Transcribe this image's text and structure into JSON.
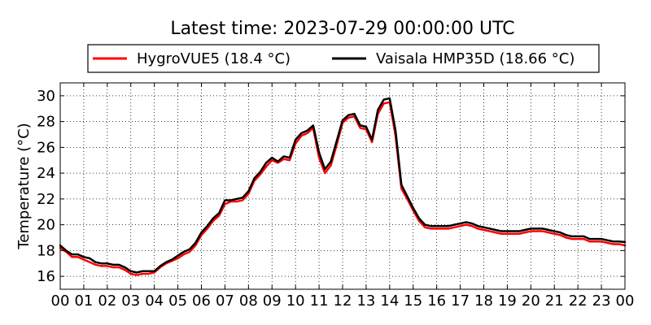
{
  "chart_data": {
    "type": "line",
    "title": "Latest time: 2023-07-29 00:00:00 UTC",
    "xlabel": "",
    "ylabel": "Temperature (°C)",
    "xlim": [
      "00",
      "00"
    ],
    "ylim": [
      15,
      31
    ],
    "x_ticks": [
      "00",
      "01",
      "02",
      "03",
      "04",
      "05",
      "06",
      "07",
      "08",
      "09",
      "10",
      "11",
      "12",
      "13",
      "14",
      "15",
      "16",
      "17",
      "18",
      "19",
      "20",
      "21",
      "22",
      "23",
      "00"
    ],
    "y_ticks": [
      16,
      18,
      20,
      22,
      24,
      26,
      28,
      30
    ],
    "grid": true,
    "legend_position": "top",
    "x_hours": [
      0.0,
      0.25,
      0.5,
      0.75,
      1.0,
      1.25,
      1.5,
      1.75,
      2.0,
      2.25,
      2.5,
      2.75,
      3.0,
      3.25,
      3.5,
      3.75,
      4.0,
      4.25,
      4.5,
      4.75,
      5.0,
      5.25,
      5.5,
      5.75,
      6.0,
      6.25,
      6.5,
      6.75,
      7.0,
      7.25,
      7.5,
      7.75,
      8.0,
      8.25,
      8.5,
      8.75,
      9.0,
      9.25,
      9.5,
      9.75,
      10.0,
      10.25,
      10.5,
      10.75,
      11.0,
      11.25,
      11.5,
      11.75,
      12.0,
      12.25,
      12.5,
      12.75,
      13.0,
      13.25,
      13.5,
      13.75,
      14.0,
      14.25,
      14.5,
      14.75,
      15.0,
      15.25,
      15.5,
      15.75,
      16.0,
      16.25,
      16.5,
      16.75,
      17.0,
      17.25,
      17.5,
      17.75,
      18.0,
      18.25,
      18.5,
      18.75,
      19.0,
      19.25,
      19.5,
      19.75,
      20.0,
      20.25,
      20.5,
      20.75,
      21.0,
      21.25,
      21.5,
      21.75,
      22.0,
      22.25,
      22.5,
      22.75,
      23.0,
      23.25,
      23.5,
      23.75,
      24.0
    ],
    "series": [
      {
        "name": "HygroVUE5 (18.4 °C)",
        "color": "#ff0000",
        "values": [
          18.2,
          17.9,
          17.5,
          17.5,
          17.3,
          17.1,
          16.9,
          16.8,
          16.8,
          16.7,
          16.7,
          16.5,
          16.2,
          16.1,
          16.2,
          16.2,
          16.3,
          16.7,
          17.0,
          17.2,
          17.4,
          17.7,
          17.9,
          18.4,
          19.2,
          19.7,
          20.3,
          20.7,
          21.6,
          21.8,
          21.8,
          21.9,
          22.4,
          23.4,
          23.9,
          24.5,
          25.0,
          24.8,
          25.1,
          25.0,
          26.3,
          26.9,
          27.1,
          27.5,
          25.2,
          24.0,
          24.6,
          26.2,
          27.9,
          28.3,
          28.4,
          27.5,
          27.4,
          26.4,
          28.6,
          29.4,
          29.5,
          26.9,
          22.8,
          22.0,
          21.1,
          20.3,
          19.8,
          19.7,
          19.7,
          19.7,
          19.7,
          19.8,
          19.9,
          20.0,
          19.9,
          19.7,
          19.6,
          19.5,
          19.4,
          19.3,
          19.3,
          19.3,
          19.3,
          19.4,
          19.5,
          19.5,
          19.5,
          19.4,
          19.3,
          19.2,
          19.0,
          18.9,
          18.9,
          18.9,
          18.7,
          18.7,
          18.7,
          18.6,
          18.5,
          18.5,
          18.4
        ]
      },
      {
        "name": "Vaisala HMP35D (18.66 °C)",
        "color": "#000000",
        "values": [
          18.4,
          18.0,
          17.7,
          17.7,
          17.5,
          17.4,
          17.1,
          17.0,
          17.0,
          16.9,
          16.9,
          16.7,
          16.4,
          16.3,
          16.4,
          16.4,
          16.4,
          16.8,
          17.1,
          17.3,
          17.6,
          17.9,
          18.1,
          18.6,
          19.4,
          19.9,
          20.5,
          20.9,
          21.9,
          21.9,
          22.0,
          22.1,
          22.6,
          23.6,
          24.1,
          24.8,
          25.2,
          24.9,
          25.3,
          25.2,
          26.6,
          27.1,
          27.3,
          27.7,
          25.6,
          24.3,
          24.9,
          26.5,
          28.1,
          28.5,
          28.6,
          27.7,
          27.6,
          26.6,
          28.9,
          29.7,
          29.8,
          27.3,
          23.1,
          22.2,
          21.3,
          20.5,
          20.0,
          19.9,
          19.9,
          19.9,
          19.9,
          20.0,
          20.1,
          20.2,
          20.1,
          19.9,
          19.8,
          19.7,
          19.6,
          19.5,
          19.5,
          19.5,
          19.5,
          19.6,
          19.7,
          19.7,
          19.7,
          19.6,
          19.5,
          19.4,
          19.2,
          19.1,
          19.1,
          19.1,
          18.9,
          18.9,
          18.9,
          18.8,
          18.7,
          18.7,
          18.66
        ]
      }
    ]
  }
}
